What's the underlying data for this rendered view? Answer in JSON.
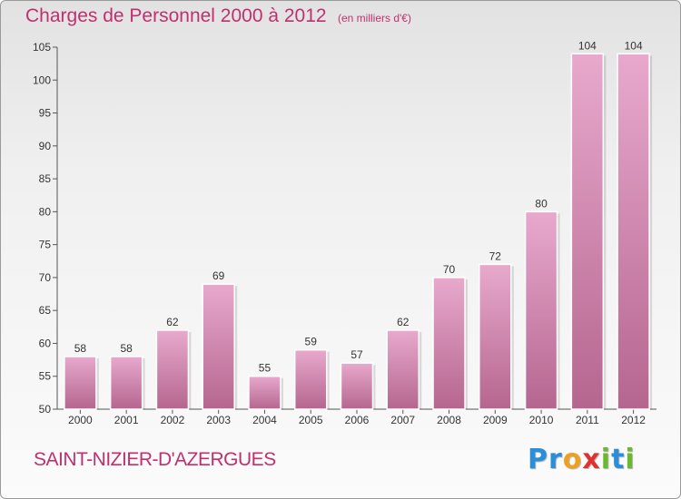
{
  "chart_data": {
    "type": "bar",
    "title": "Charges de Personnel 2000 à 2012",
    "subtitle": "(en milliers d'€)",
    "categories": [
      "2000",
      "2001",
      "2002",
      "2003",
      "2004",
      "2005",
      "2006",
      "2007",
      "2008",
      "2009",
      "2010",
      "2011",
      "2012"
    ],
    "values": [
      58,
      58,
      62,
      69,
      55,
      59,
      57,
      62,
      70,
      72,
      80,
      104,
      104
    ],
    "data_labels": [
      "58",
      "58",
      "62",
      "69",
      "55",
      "59",
      "57",
      "62",
      "70",
      "72",
      "80",
      "104",
      "104"
    ],
    "ylim": [
      50,
      105
    ],
    "yticks": [
      50,
      55,
      60,
      65,
      70,
      75,
      80,
      85,
      90,
      95,
      100,
      105
    ],
    "xlabel": "",
    "ylabel": "",
    "grid": false,
    "colors": {
      "bar_light": "#e8a9cd",
      "bar_dark": "#b5668f",
      "text": "#c0306e"
    }
  },
  "footer": {
    "commune": "SAINT-NIZIER-D'AZERGUES",
    "logo_letters": [
      {
        "ch": "P",
        "color": "#2a8fd8"
      },
      {
        "ch": "r",
        "color": "#2a8fd8"
      },
      {
        "ch": "o",
        "color": "#f0a020"
      },
      {
        "ch": "x",
        "color": "#e03030"
      },
      {
        "ch": "i",
        "color": "#6cb830"
      },
      {
        "ch": "t",
        "color": "#2a8fd8"
      },
      {
        "ch": "i",
        "color": "#6cb830"
      }
    ]
  }
}
